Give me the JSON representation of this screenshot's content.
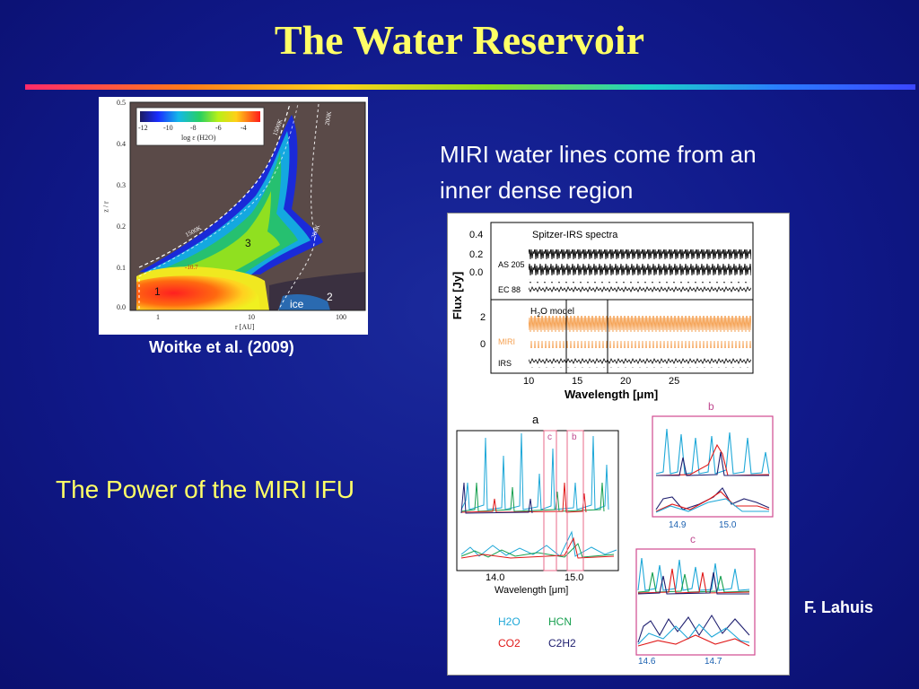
{
  "slide": {
    "title": "The Water Reservoir",
    "miri_text_line1": "MIRI water lines come from an",
    "miri_text_line2": " inner dense region",
    "power_text": "The Power of the MIRI IFU",
    "woitke_caption": "Woitke et al. (2009)",
    "lahuis_caption": "F. Lahuis"
  },
  "woitke_figure": {
    "colorbar_ticks": [
      "-12",
      "-10",
      "-8",
      "-6",
      "-4"
    ],
    "colorbar_label": "log ε (H2O)",
    "ylabel": "z / r",
    "xlabel": "r [AU]",
    "y_ticks": [
      "0.5",
      "0.4",
      "0.3",
      "0.2",
      "0.1",
      "0.0"
    ],
    "x_ticks": [
      "1",
      "10",
      "100"
    ],
    "contour_1500k_top": "1500K",
    "contour_200k_top": "200K",
    "contour_1500k_mid": "1500K",
    "contour_200k_mid": "200K",
    "region_1": "1",
    "region_2": "2",
    "region_3": "3",
    "region_ice": "ice",
    "contour_value": "-10.7"
  },
  "spectra_figure": {
    "top_title": "Spitzer-IRS spectra",
    "ylabel": "Flux [Jy]",
    "top_ticks": [
      "0.4",
      "0.2",
      "0.0"
    ],
    "as205_label": "AS 205",
    "ec88_label": "EC 88",
    "model_title_pre": "H",
    "model_title_sub": "2",
    "model_title_post": "O model",
    "mid_ticks": [
      "2",
      "0"
    ],
    "miri_label": "MIRI",
    "irs_label": "IRS",
    "x_ticks": [
      "10",
      "15",
      "20",
      "25"
    ],
    "xlabel": "Wavelength [μm]",
    "panel_a": "a",
    "panel_b": "b",
    "panel_c": "c",
    "zoom_labels": [
      "c",
      "b"
    ],
    "a_ticks": [
      "14.0",
      "15.0"
    ],
    "a_xlabel": "Wavelength [μm]",
    "b_ticks": [
      "14.9",
      "15.0"
    ],
    "c_ticks": [
      "14.6",
      "14.7"
    ],
    "legend": {
      "h2o": "H2O",
      "hcn": "HCN",
      "co2": "CO2",
      "c2h2": "C2H2",
      "h2o_color": "#1fa8d8",
      "hcn_color": "#18a050",
      "co2_color": "#e01818",
      "c2h2_color": "#202070"
    }
  }
}
